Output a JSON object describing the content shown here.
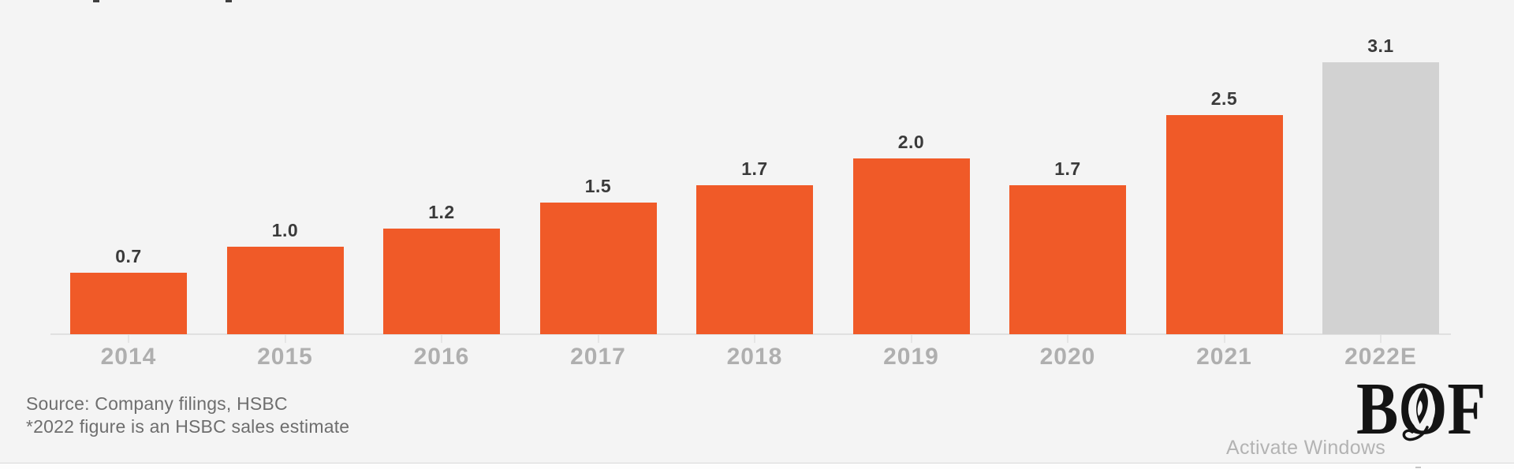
{
  "page": {
    "background_color": "#F4F4F4"
  },
  "chart_data": {
    "type": "bar",
    "categories": [
      "2014",
      "2015",
      "2016",
      "2017",
      "2018",
      "2019",
      "2020",
      "2021",
      "2022E"
    ],
    "values": [
      0.7,
      1.0,
      1.2,
      1.5,
      1.7,
      2.0,
      1.7,
      2.5,
      3.1
    ],
    "value_labels": [
      "0.7",
      "1.0",
      "1.2",
      "1.5",
      "1.7",
      "2.0",
      "1.7",
      "2.5",
      "3.1"
    ],
    "title": "",
    "xlabel": "",
    "ylabel": "",
    "ylim": [
      0,
      3.3
    ],
    "grid": false,
    "legend": false,
    "bar_color": "#F05A28",
    "estimate_bar_color": "#D2D2D2",
    "estimate_index": 8,
    "value_label_color": "#3A3A3A",
    "category_label_color": "#AFAFAF"
  },
  "footnote": {
    "line1": "Source: Company filings, HSBC",
    "line2": "*2022 figure is an HSBC sales estimate"
  },
  "logo": {
    "name": "BoF",
    "letters": "BOF"
  },
  "watermark": {
    "text": "Activate Windows"
  }
}
